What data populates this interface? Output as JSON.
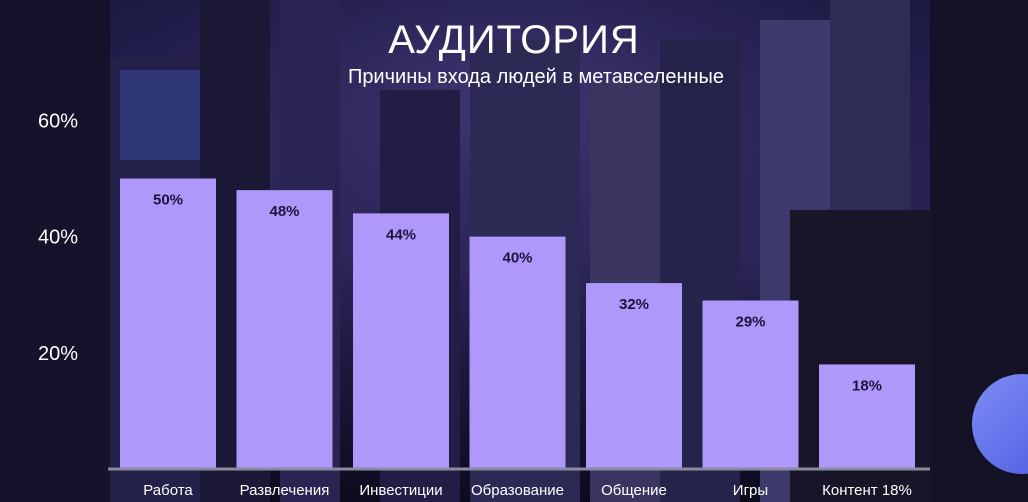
{
  "title": "АУДИТОРИЯ",
  "subtitle": "Причины входа людей в метавселенные",
  "colors": {
    "bar": "#ae98f9",
    "label": "#1c1440",
    "axis_text": "#ffffff",
    "baseline": "#8a8aa0",
    "accent_circle": "#6a78f0"
  },
  "chart_data": {
    "type": "bar",
    "title": "АУДИТОРИЯ",
    "subtitle": "Причины входа людей в метавселенные",
    "xlabel": "",
    "ylabel": "",
    "categories": [
      "Работа",
      "Развлечения",
      "Инвестиции",
      "Образование",
      "Общение",
      "Игры",
      "Контент 18%"
    ],
    "values": [
      50,
      48,
      44,
      40,
      32,
      29,
      18
    ],
    "value_labels": [
      "50%",
      "48%",
      "44%",
      "40%",
      "32%",
      "29%",
      "18%"
    ],
    "y_ticks": [
      20,
      40,
      60
    ],
    "y_tick_labels": [
      "20%",
      "40%",
      "60%"
    ],
    "ylim": [
      0,
      63
    ],
    "grid": false,
    "legend": "none"
  }
}
